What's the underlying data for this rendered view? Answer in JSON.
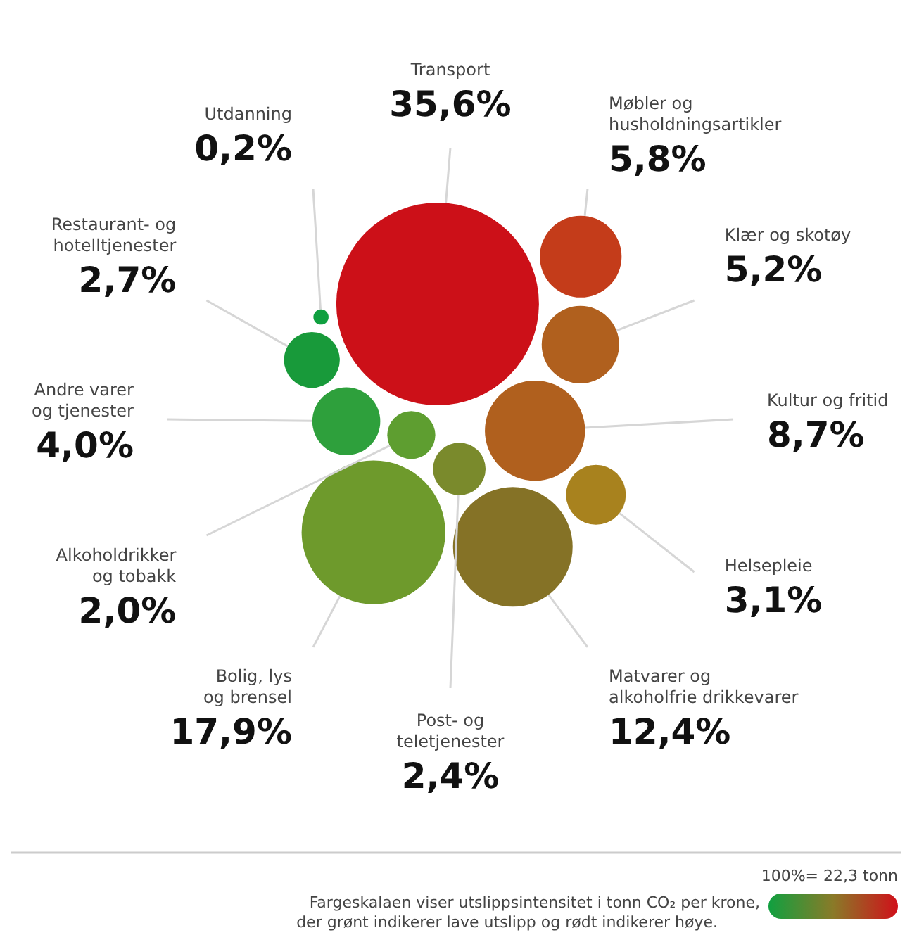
{
  "chart_data": {
    "type": "other",
    "categories": [
      "Transport",
      "Møbler og\nhusholdningsartikler",
      "Klær og skotøy",
      "Kultur og fritid",
      "Helsepleie",
      "Matvarer og\nalkoholfrie drikkevarer",
      "Post- og\nteletjenester",
      "Bolig, lys\nog brensel",
      "Alkoholdrikker\nog tobakk",
      "Andre varer\nog tjenester",
      "Restaurant- og\nhotelltjenester",
      "Utdanning"
    ],
    "values": [
      35.6,
      5.8,
      5.2,
      8.7,
      3.1,
      12.4,
      2.4,
      17.9,
      2.0,
      4.0,
      2.7,
      0.2
    ],
    "value_labels": [
      "35,6%",
      "5,8%",
      "5,2%",
      "8,7%",
      "3,1%",
      "12,4%",
      "2,4%",
      "17,9%",
      "2,0%",
      "4,0%",
      "2,7%",
      "0,2%"
    ],
    "colors": [
      "#cc1018",
      "#c43c1a",
      "#b0601e",
      "#b0601e",
      "#a8821e",
      "#857226",
      "#7a8a2c",
      "#6e9a2c",
      "#5e9e30",
      "#2ea03c",
      "#189a3a",
      "#10a040"
    ],
    "annotations": [
      "100%= 22,3 tonn",
      "Fargeskalaen viser utslippsintensitet i tonn CO₂ per krone,\nder grønt indikerer lave utslipp og rødt indikerer høye."
    ]
  }
}
